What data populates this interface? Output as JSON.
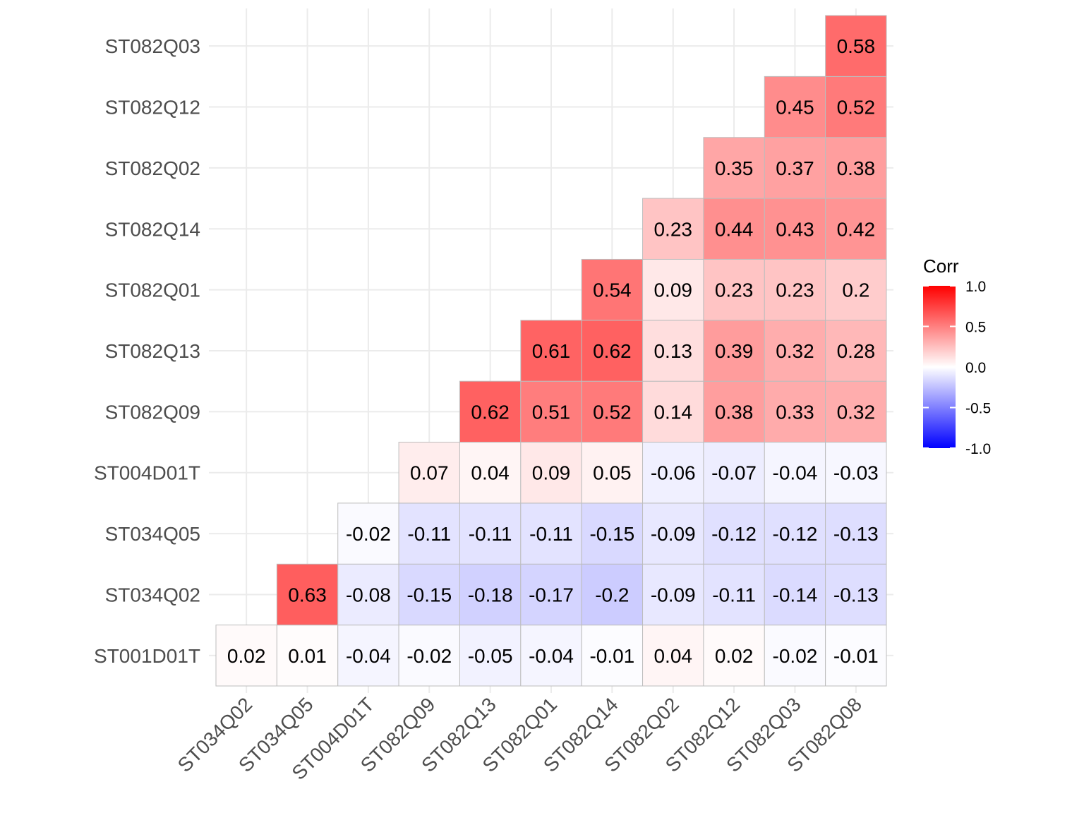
{
  "chart_data": {
    "type": "heatmap",
    "title": "",
    "xlabel": "",
    "ylabel": "",
    "x_categories": [
      "ST034Q02",
      "ST034Q05",
      "ST004D01T",
      "ST082Q09",
      "ST082Q13",
      "ST082Q01",
      "ST082Q14",
      "ST082Q02",
      "ST082Q12",
      "ST082Q03",
      "ST082Q08"
    ],
    "y_categories": [
      "ST001D01T",
      "ST034Q02",
      "ST034Q05",
      "ST004D01T",
      "ST082Q09",
      "ST082Q13",
      "ST082Q01",
      "ST082Q14",
      "ST082Q02",
      "ST082Q12",
      "ST082Q03"
    ],
    "values": [
      [
        0.02,
        0.01,
        -0.04,
        -0.02,
        -0.05,
        -0.04,
        -0.01,
        0.04,
        0.02,
        -0.02,
        -0.01
      ],
      [
        null,
        0.63,
        -0.08,
        -0.15,
        -0.18,
        -0.17,
        -0.2,
        -0.09,
        -0.11,
        -0.14,
        -0.13
      ],
      [
        null,
        null,
        -0.02,
        -0.11,
        -0.11,
        -0.11,
        -0.15,
        -0.09,
        -0.12,
        -0.12,
        -0.13
      ],
      [
        null,
        null,
        null,
        0.07,
        0.04,
        0.09,
        0.05,
        -0.06,
        -0.07,
        -0.04,
        -0.03
      ],
      [
        null,
        null,
        null,
        null,
        0.62,
        0.51,
        0.52,
        0.14,
        0.38,
        0.33,
        0.32
      ],
      [
        null,
        null,
        null,
        null,
        null,
        0.61,
        0.62,
        0.13,
        0.39,
        0.32,
        0.28
      ],
      [
        null,
        null,
        null,
        null,
        null,
        null,
        0.54,
        0.09,
        0.23,
        0.23,
        0.2
      ],
      [
        null,
        null,
        null,
        null,
        null,
        null,
        null,
        0.23,
        0.44,
        0.43,
        0.42
      ],
      [
        null,
        null,
        null,
        null,
        null,
        null,
        null,
        null,
        0.35,
        0.37,
        0.38
      ],
      [
        null,
        null,
        null,
        null,
        null,
        null,
        null,
        null,
        null,
        0.45,
        0.52
      ],
      [
        null,
        null,
        null,
        null,
        null,
        null,
        null,
        null,
        null,
        null,
        0.58
      ]
    ],
    "color_scale": {
      "low": "#0000ff",
      "mid": "#ffffff",
      "high": "#ff0000",
      "limits": [
        -1.0,
        1.0
      ]
    },
    "legend": {
      "title": "Corr",
      "ticks": [
        "1.0",
        "0.5",
        "0.0",
        "-0.5",
        "-1.0"
      ],
      "position": "right"
    },
    "grid": true
  }
}
